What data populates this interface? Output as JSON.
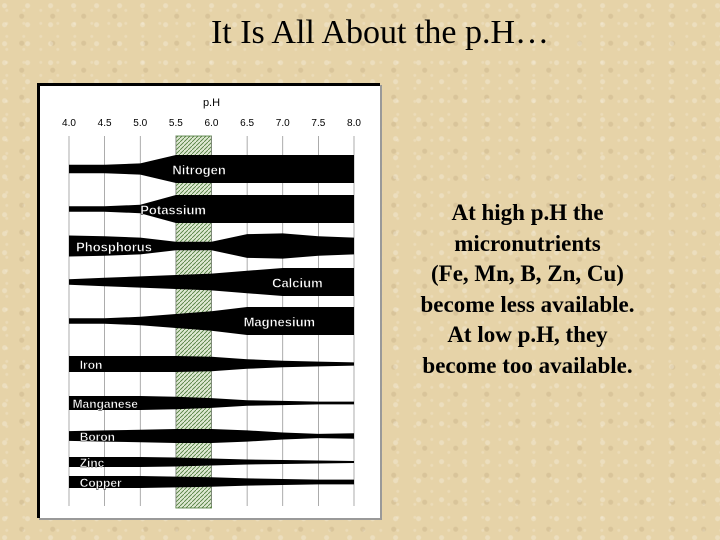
{
  "slide": {
    "title": "It Is All About the p.H…",
    "note_lines": [
      "At high p.H the",
      "micronutrients",
      "(Fe, Mn, B, Zn, Cu)",
      "become less available.",
      "At low p.H, they",
      "become too available."
    ]
  },
  "chart_data": {
    "type": "band",
    "axis_title": "p.H",
    "x_ticks": [
      "4.0",
      "4.5",
      "5.0",
      "5.5",
      "6.0",
      "6.5",
      "7.0",
      "7.5",
      "8.0"
    ],
    "xlim": [
      4.0,
      8.0
    ],
    "highlight_range": [
      5.5,
      6.0
    ],
    "series": [
      {
        "name": "Nitrogen",
        "label_anchor": [
          5.45,
          5
        ],
        "points": [
          [
            4.0,
            0.3
          ],
          [
            4.5,
            0.3
          ],
          [
            5.0,
            0.4
          ],
          [
            5.5,
            1.0
          ],
          [
            6.0,
            1.0
          ],
          [
            8.0,
            1.0
          ]
        ]
      },
      {
        "name": "Potassium",
        "label_anchor": [
          5.0,
          5
        ],
        "points": [
          [
            4.0,
            0.2
          ],
          [
            4.5,
            0.2
          ],
          [
            5.0,
            0.3
          ],
          [
            5.5,
            1.0
          ],
          [
            6.0,
            1.0
          ],
          [
            8.0,
            1.0
          ]
        ]
      },
      {
        "name": "Phosphorus",
        "label_anchor": [
          4.1,
          5
        ],
        "points": [
          [
            4.0,
            0.75
          ],
          [
            4.5,
            0.7
          ],
          [
            5.0,
            0.6
          ],
          [
            5.5,
            0.3
          ],
          [
            6.0,
            0.3
          ],
          [
            6.5,
            0.85
          ],
          [
            7.0,
            0.9
          ],
          [
            7.5,
            0.7
          ],
          [
            8.0,
            0.6
          ]
        ]
      },
      {
        "name": "Calcium",
        "label_anchor": [
          6.85,
          5
        ],
        "points": [
          [
            4.0,
            0.2
          ],
          [
            4.5,
            0.3
          ],
          [
            5.0,
            0.4
          ],
          [
            5.5,
            0.5
          ],
          [
            6.0,
            0.6
          ],
          [
            6.5,
            0.8
          ],
          [
            7.0,
            1.0
          ],
          [
            8.0,
            1.0
          ]
        ]
      },
      {
        "name": "Magnesium",
        "label_anchor": [
          6.45,
          5
        ],
        "points": [
          [
            4.0,
            0.2
          ],
          [
            4.5,
            0.2
          ],
          [
            5.0,
            0.3
          ],
          [
            5.5,
            0.5
          ],
          [
            6.0,
            0.7
          ],
          [
            6.5,
            1.0
          ],
          [
            8.0,
            1.0
          ]
        ]
      },
      {
        "name": "Iron",
        "label_anchor": [
          4.15,
          5
        ],
        "points": [
          [
            4.0,
            1.0
          ],
          [
            4.5,
            1.0
          ],
          [
            5.0,
            1.0
          ],
          [
            5.5,
            1.0
          ],
          [
            6.0,
            0.9
          ],
          [
            6.5,
            0.6
          ],
          [
            7.0,
            0.4
          ],
          [
            7.5,
            0.3
          ],
          [
            8.0,
            0.2
          ]
        ]
      },
      {
        "name": "Manganese",
        "label_anchor": [
          4.05,
          5
        ],
        "points": [
          [
            4.0,
            1.0
          ],
          [
            4.5,
            1.0
          ],
          [
            5.0,
            1.0
          ],
          [
            5.5,
            0.9
          ],
          [
            6.0,
            0.7
          ],
          [
            6.5,
            0.4
          ],
          [
            7.0,
            0.3
          ],
          [
            7.5,
            0.2
          ],
          [
            8.0,
            0.2
          ]
        ]
      },
      {
        "name": "Boron",
        "label_anchor": [
          4.15,
          5
        ],
        "points": [
          [
            4.0,
            0.7
          ],
          [
            4.5,
            0.8
          ],
          [
            5.0,
            0.9
          ],
          [
            5.5,
            1.0
          ],
          [
            6.0,
            1.0
          ],
          [
            6.5,
            0.8
          ],
          [
            7.0,
            0.5
          ],
          [
            7.5,
            0.3
          ],
          [
            8.0,
            0.4
          ]
        ]
      },
      {
        "name": "Zinc",
        "label_anchor": [
          4.15,
          4
        ],
        "points": [
          [
            4.0,
            1.0
          ],
          [
            4.5,
            1.0
          ],
          [
            5.0,
            1.0
          ],
          [
            5.5,
            0.9
          ],
          [
            6.0,
            0.7
          ],
          [
            6.5,
            0.5
          ],
          [
            7.0,
            0.4
          ],
          [
            7.5,
            0.3
          ],
          [
            8.0,
            0.2
          ]
        ]
      },
      {
        "name": "Copper",
        "label_anchor": [
          4.15,
          4
        ],
        "points": [
          [
            4.0,
            1.0
          ],
          [
            4.5,
            1.0
          ],
          [
            5.0,
            1.0
          ],
          [
            5.5,
            0.9
          ],
          [
            6.0,
            0.8
          ],
          [
            6.5,
            0.6
          ],
          [
            7.0,
            0.5
          ],
          [
            7.5,
            0.4
          ],
          [
            8.0,
            0.4
          ]
        ]
      }
    ]
  }
}
